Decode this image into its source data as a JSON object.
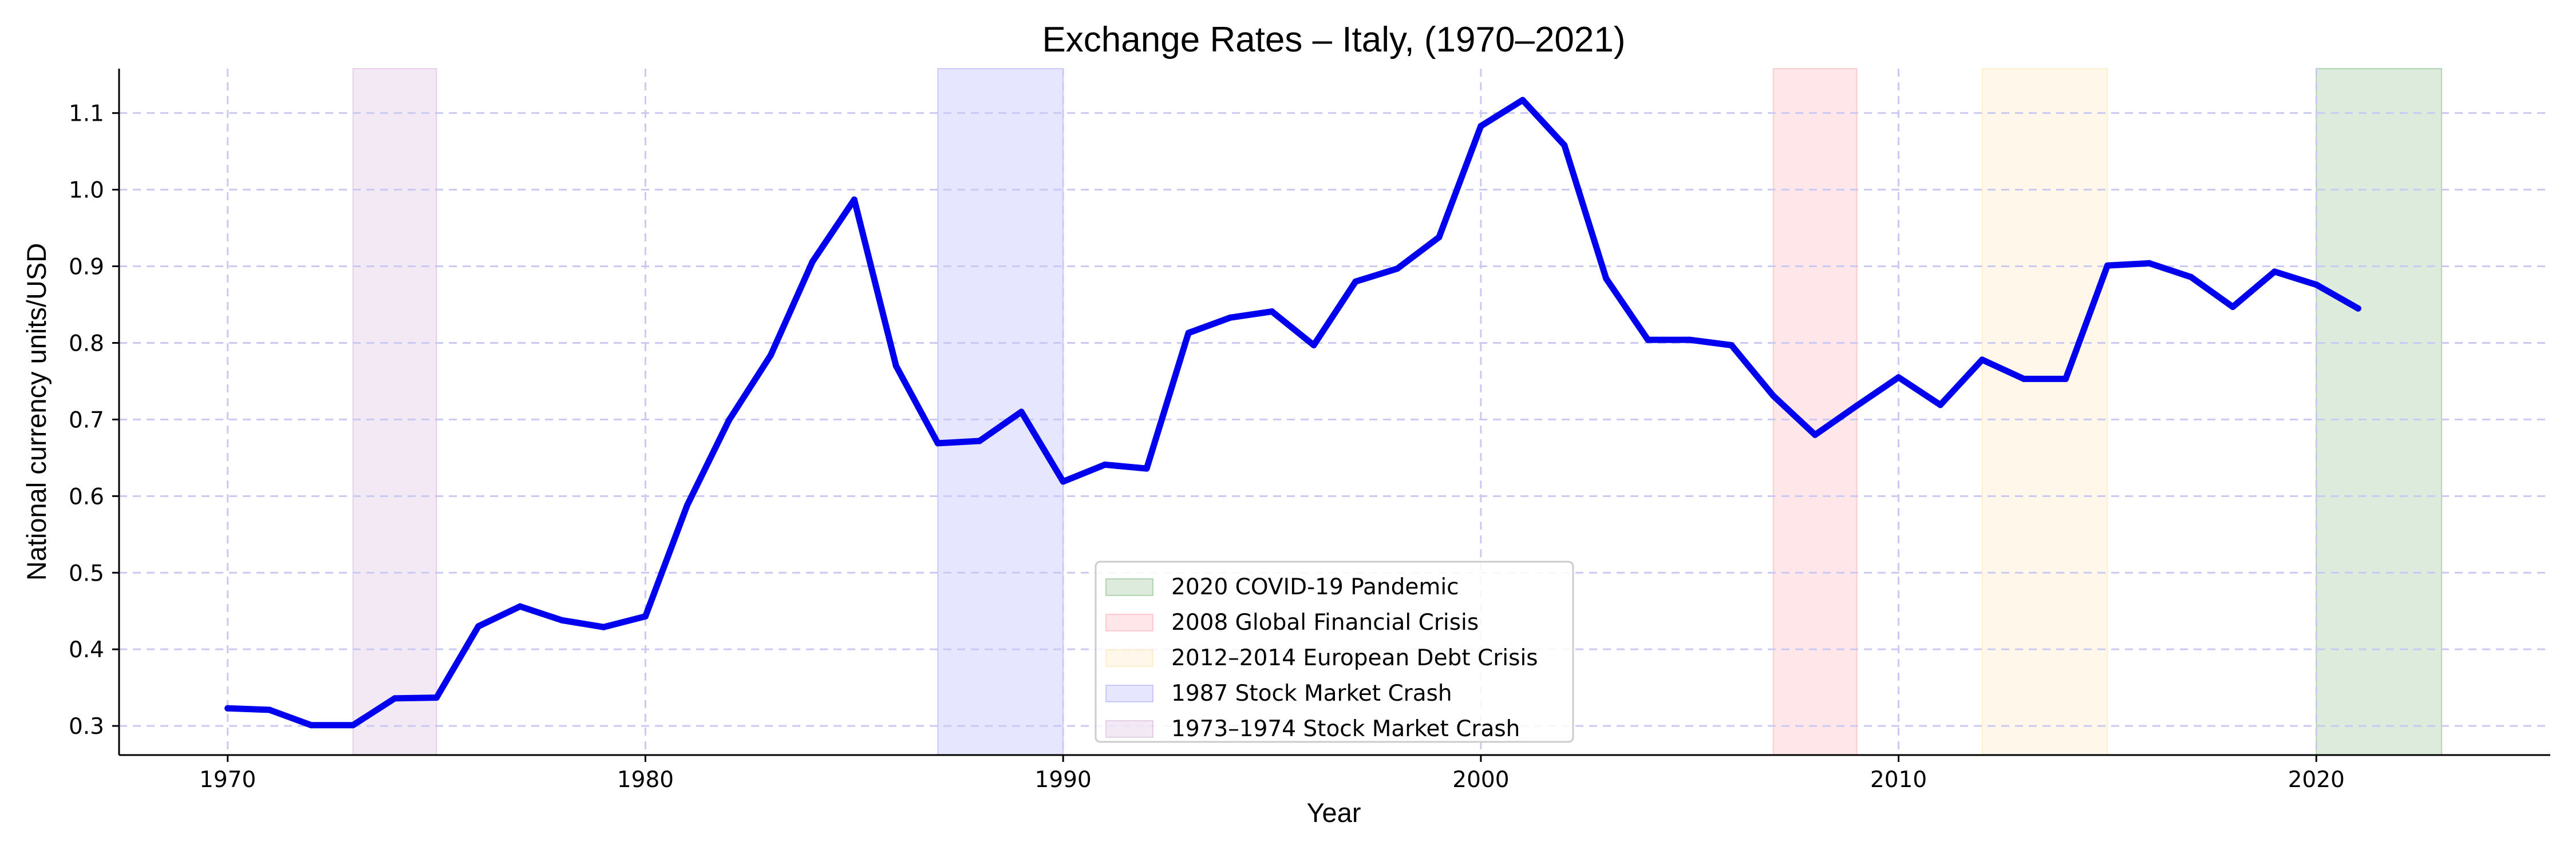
{
  "chart_data": {
    "type": "line",
    "title": "Exchange Rates – Italy, (1970–2021)",
    "xlabel": "Year",
    "ylabel": "National currency units/USD",
    "xlim": [
      1967.4,
      2025.6
    ],
    "ylim": [
      0.262,
      1.158
    ],
    "x_ticks": [
      1970,
      1980,
      1990,
      2000,
      2010,
      2020
    ],
    "y_ticks": [
      0.3,
      0.4,
      0.5,
      0.6,
      0.7,
      0.8,
      0.9,
      1.0,
      1.1
    ],
    "grid": true,
    "legend_position": "lower center",
    "series": [
      {
        "color": "#0000ee",
        "x": [
          1970,
          1971,
          1972,
          1973,
          1974,
          1975,
          1976,
          1977,
          1978,
          1979,
          1980,
          1981,
          1982,
          1983,
          1984,
          1985,
          1986,
          1987,
          1988,
          1989,
          1990,
          1991,
          1992,
          1993,
          1994,
          1995,
          1996,
          1997,
          1998,
          1999,
          2000,
          2001,
          2002,
          2003,
          2004,
          2005,
          2006,
          2007,
          2008,
          2009,
          2010,
          2011,
          2012,
          2013,
          2014,
          2015,
          2016,
          2017,
          2018,
          2019,
          2020,
          2021
        ],
        "values": [
          0.323,
          0.321,
          0.301,
          0.301,
          0.336,
          0.337,
          0.43,
          0.456,
          0.438,
          0.429,
          0.443,
          0.588,
          0.699,
          0.784,
          0.906,
          0.987,
          0.77,
          0.669,
          0.672,
          0.71,
          0.619,
          0.641,
          0.636,
          0.813,
          0.833,
          0.841,
          0.797,
          0.88,
          0.897,
          0.938,
          1.083,
          1.117,
          1.058,
          0.884,
          0.804,
          0.804,
          0.797,
          0.731,
          0.68,
          0.718,
          0.755,
          0.719,
          0.778,
          0.753,
          0.753,
          0.901,
          0.904,
          0.886,
          0.847,
          0.893,
          0.876,
          0.845
        ]
      }
    ],
    "shaded_periods": [
      {
        "label": "2020 COVID-19 Pandemic",
        "start": 2020,
        "end": 2023,
        "color": "#2e8b2e"
      },
      {
        "label": "2008 Global Financial Crisis",
        "start": 2007,
        "end": 2009,
        "color": "#ff6f7a"
      },
      {
        "label": "2012–2014 European Debt Crisis",
        "start": 2012,
        "end": 2015,
        "color": "#ffd27a"
      },
      {
        "label": "1987 Stock Market Crash",
        "start": 1987,
        "end": 1990,
        "color": "#6b6bff"
      },
      {
        "label": "1973–1974 Stock Market Crash",
        "start": 1973,
        "end": 1975,
        "color": "#b57fc0"
      }
    ]
  }
}
